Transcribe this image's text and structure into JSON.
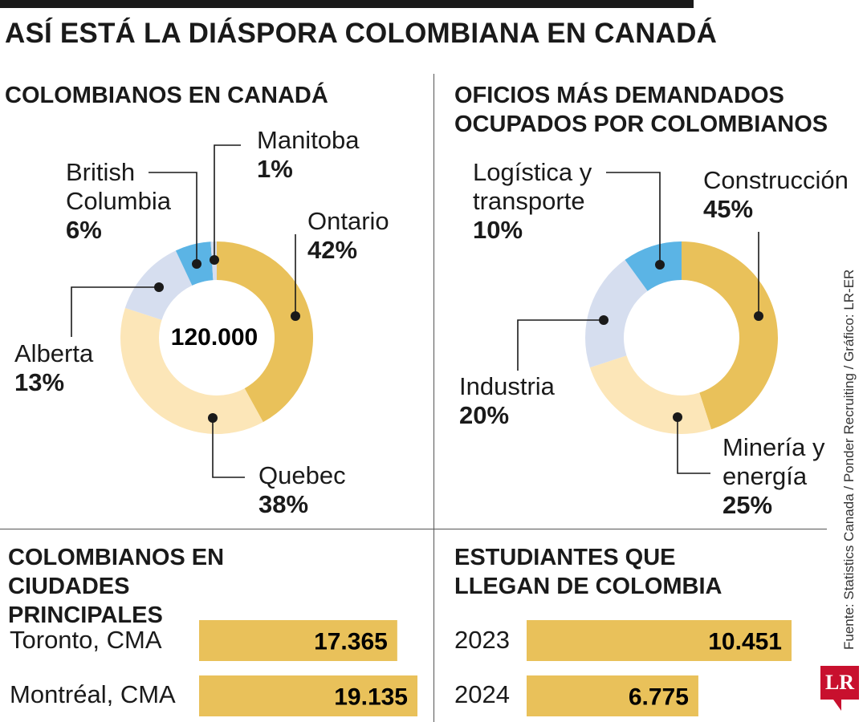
{
  "title": "ASÍ ESTÁ LA DIÁSPORA COLOMBIANA EN CANADÁ",
  "source": "Fuente: Statistics Canada / Ponder Recruiting / Gráfico: LR-ER",
  "logo": "LR",
  "colors": {
    "gold": "#E9C15A",
    "cream": "#FCE6B8",
    "lavender": "#D6DEEF",
    "blue": "#5BB4E5"
  },
  "chart_data": [
    {
      "type": "pie",
      "title": "COLOMBIANOS EN CANADÁ",
      "center_label": "120.000",
      "slices": [
        {
          "name": "Ontario",
          "value": 42,
          "label": "42%",
          "color": "#E9C15A"
        },
        {
          "name": "Quebec",
          "value": 38,
          "label": "38%",
          "color": "#FCE6B8"
        },
        {
          "name": "Alberta",
          "value": 13,
          "label": "13%",
          "color": "#D6DEEF"
        },
        {
          "name": "British Columbia",
          "value": 6,
          "label": "6%",
          "color": "#5BB4E5"
        },
        {
          "name": "Manitoba",
          "value": 1,
          "label": "1%",
          "color": "#D6DEEF"
        }
      ]
    },
    {
      "type": "pie",
      "title": "OFICIOS MÁS DEMANDADOS OCUPADOS POR COLOMBIANOS",
      "slices": [
        {
          "name": "Construcción",
          "value": 45,
          "label": "45%",
          "color": "#E9C15A"
        },
        {
          "name": "Minería y energía",
          "value": 25,
          "label": "25%",
          "color": "#FCE6B8"
        },
        {
          "name": "Industria",
          "value": 20,
          "label": "20%",
          "color": "#D6DEEF"
        },
        {
          "name": "Logística y transporte",
          "value": 10,
          "label": "10%",
          "color": "#5BB4E5"
        }
      ]
    },
    {
      "type": "bar",
      "title": "COLOMBIANOS EN CIUDADES PRINCIPALES",
      "categories": [
        "Toronto, CMA",
        "Montréal, CMA"
      ],
      "values": [
        17365,
        19135
      ],
      "value_labels": [
        "17.365",
        "19.135"
      ],
      "color": "#E9C15A"
    },
    {
      "type": "bar",
      "title": "ESTUDIANTES QUE LLEGAN DE COLOMBIA",
      "categories": [
        "2023",
        "2024"
      ],
      "values": [
        10451,
        6775
      ],
      "value_labels": [
        "10.451",
        "6.775"
      ],
      "color": "#E9C15A"
    }
  ]
}
